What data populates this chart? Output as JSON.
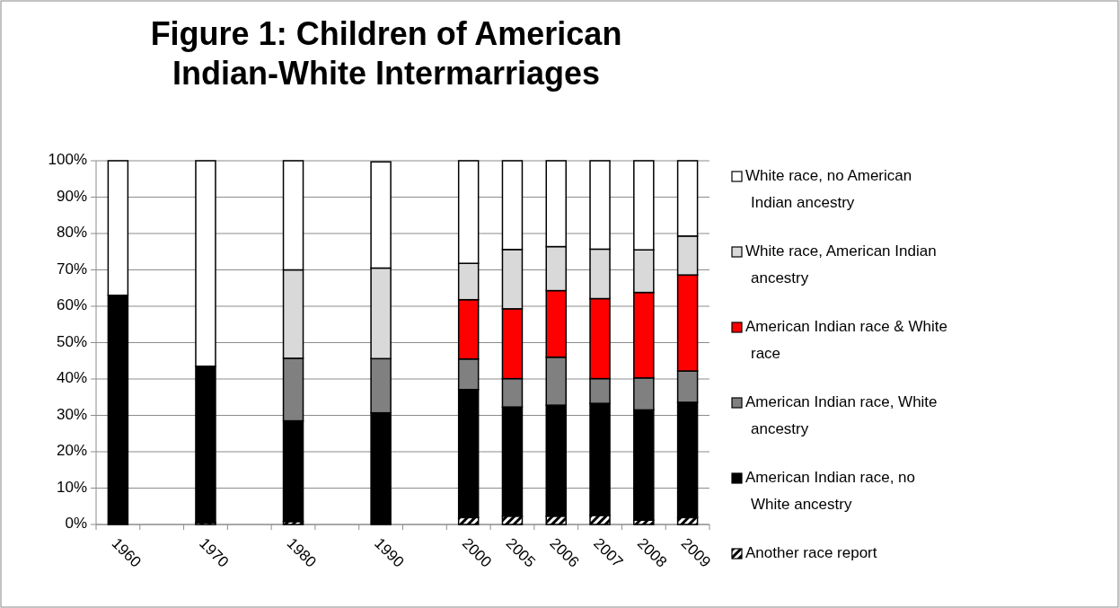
{
  "chart_data": {
    "type": "bar",
    "stacked": true,
    "title": "Figure 1: Children of American Indian-White Intermarriages",
    "categories": [
      "1960",
      null,
      "1970",
      null,
      "1980",
      null,
      "1990",
      null,
      "2000",
      "2005",
      "2006",
      "2007",
      "2008",
      "2009"
    ],
    "series": [
      {
        "name": "Another race report",
        "color": "#000000",
        "values": [
          0,
          null,
          0.5,
          null,
          0.8,
          null,
          null,
          null,
          1.9,
          2.3,
          2.3,
          2.5,
          1.2,
          1.9
        ]
      },
      {
        "name": "American Indian race, no White ancestry",
        "color": "#000000",
        "values": [
          63,
          null,
          43,
          null,
          27.7,
          null,
          30.7,
          null,
          35.2,
          30,
          30.5,
          30.8,
          30.3,
          31.7
        ]
      },
      {
        "name": "American Indian race, White ancestry",
        "color": "#808080",
        "values": [
          0,
          null,
          0,
          null,
          17.2,
          null,
          14.9,
          null,
          8.4,
          7.8,
          13.2,
          6.8,
          8.8,
          8.6
        ]
      },
      {
        "name": "American Indian race & White race",
        "color": "#ff0000",
        "values": [
          0,
          null,
          0,
          null,
          0,
          null,
          0,
          null,
          16.3,
          19.2,
          18.3,
          22,
          23.5,
          26.4
        ]
      },
      {
        "name": "White race, American Indian ancestry",
        "color": "#d9d9d9",
        "values": [
          0,
          null,
          0,
          null,
          24.3,
          null,
          24.9,
          null,
          10,
          16.3,
          12.1,
          13.6,
          11.7,
          10.7
        ]
      },
      {
        "name": "White race, no American Indian ancestry",
        "color": "#ffffff",
        "values": [
          37,
          null,
          56.5,
          null,
          30,
          null,
          29.2,
          null,
          28.2,
          24.4,
          23.6,
          24.3,
          24.5,
          20.7
        ]
      }
    ],
    "ylim": [
      0,
      100
    ],
    "yticks": [
      {
        "value": 0,
        "label": "0%"
      },
      {
        "value": 10,
        "label": "10%"
      },
      {
        "value": 20,
        "label": "20%"
      },
      {
        "value": 30,
        "label": "30%"
      },
      {
        "value": 40,
        "label": "40%"
      },
      {
        "value": 50,
        "label": "50%"
      },
      {
        "value": 60,
        "label": "60%"
      },
      {
        "value": 70,
        "label": "70%"
      },
      {
        "value": 80,
        "label": "80%"
      },
      {
        "value": 90,
        "label": "90%"
      },
      {
        "value": 100,
        "label": "100%"
      }
    ],
    "grid": "y",
    "legend": "right"
  }
}
